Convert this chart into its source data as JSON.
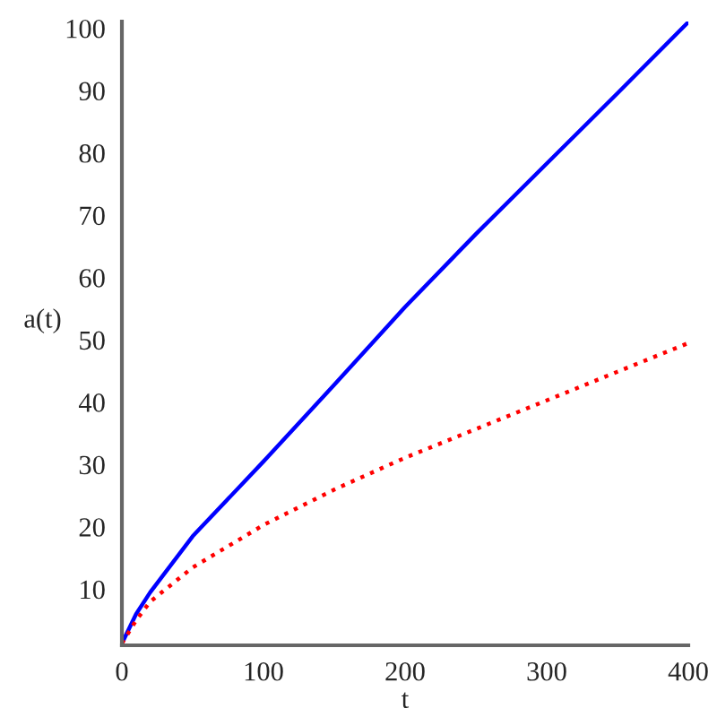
{
  "chart_data": {
    "type": "line",
    "xlabel": "t",
    "ylabel": "a(t)",
    "x": [
      0,
      10,
      20,
      50,
      100,
      150,
      200,
      250,
      300,
      350,
      400
    ],
    "series": [
      {
        "color": "#0000ff",
        "line_style": "solid",
        "values": [
          1.3,
          6,
          9.5,
          18.5,
          30.5,
          42.8,
          55.3,
          67,
          78.3,
          89.6,
          101
        ]
      },
      {
        "color": "#ff0000",
        "line_style": "dotted",
        "values": [
          1.3,
          5,
          8,
          13.5,
          20.3,
          26,
          31.1,
          35.7,
          40.3,
          44.9,
          49.5
        ]
      }
    ],
    "xlim": [
      0,
      400
    ],
    "ylim": [
      1,
      101.1
    ],
    "xticks": [
      0,
      100,
      200,
      300,
      400
    ],
    "yticks": [
      10,
      20,
      30,
      40,
      50,
      60,
      70,
      80,
      90,
      100
    ],
    "grid": false,
    "legend": false
  }
}
